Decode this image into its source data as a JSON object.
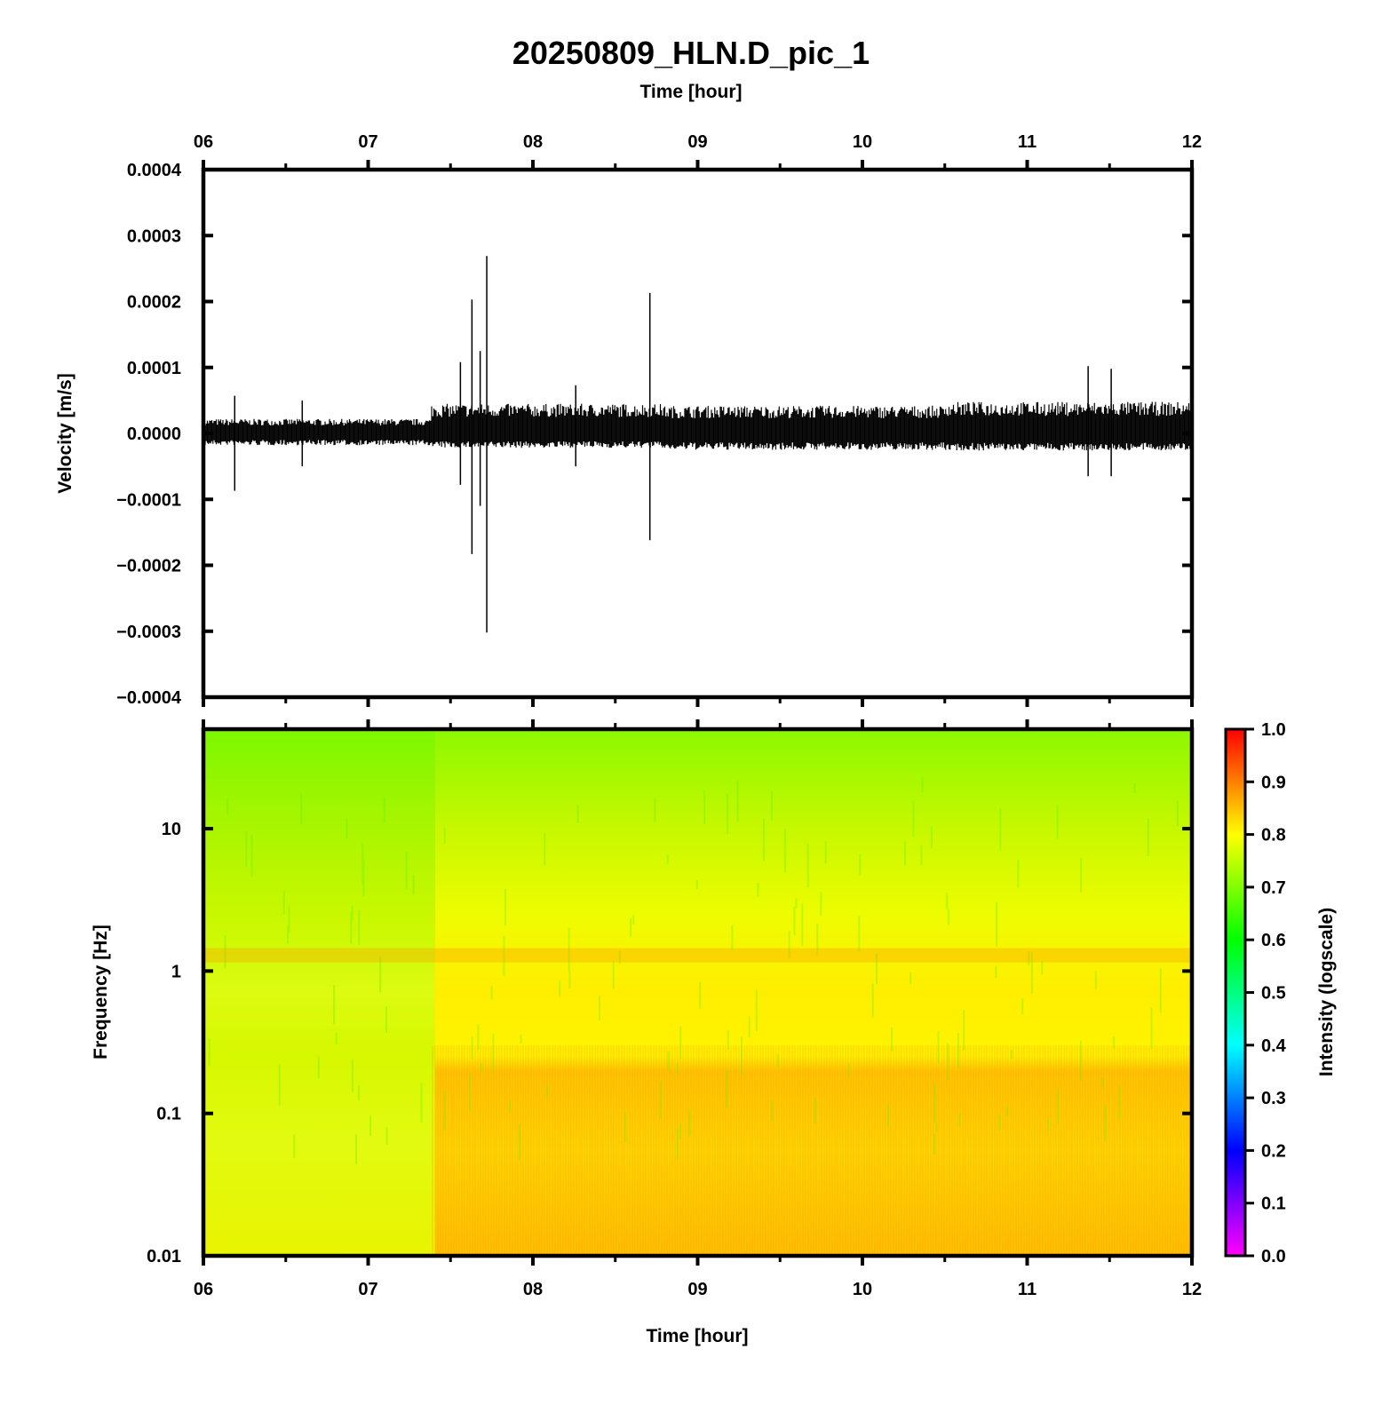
{
  "title": "20250809_HLN.D_pic_1",
  "top_axis_label": "Time [hour]",
  "bottom_axis_label": "Time [hour]",
  "chart_data": [
    {
      "type": "line",
      "panel": "seismogram",
      "ylabel": "Velocity [m/s]",
      "xlabel": "Time [hour]",
      "x_range_hours": [
        6,
        12
      ],
      "ylim": [
        -0.0004,
        0.0004
      ],
      "x_ticks": [
        "06",
        "07",
        "08",
        "09",
        "10",
        "11",
        "12"
      ],
      "y_ticks": [
        "0.0004",
        "0.0003",
        "0.0002",
        "0.0001",
        "0.0000",
        "−0.0001",
        "−0.0002",
        "−0.0003",
        "−0.0004"
      ],
      "noise_segments": [
        {
          "t_start": 6.0,
          "t_end": 7.38,
          "upper": 2.2e-05,
          "lower": -1.8e-05
        },
        {
          "t_start": 7.38,
          "t_end": 8.8,
          "upper": 4.5e-05,
          "lower": -2.2e-05
        },
        {
          "t_start": 8.8,
          "t_end": 10.5,
          "upper": 4.2e-05,
          "lower": -2.5e-05
        },
        {
          "t_start": 10.5,
          "t_end": 12.0,
          "upper": 4.8e-05,
          "lower": -2.6e-05
        }
      ],
      "spikes": [
        {
          "t": 6.19,
          "max": 5.7e-05,
          "min": -8.7e-05
        },
        {
          "t": 6.6,
          "max": 5e-05,
          "min": -5e-05
        },
        {
          "t": 7.56,
          "max": 0.000108,
          "min": -7.8e-05
        },
        {
          "t": 7.63,
          "max": 0.000203,
          "min": -0.000183
        },
        {
          "t": 7.68,
          "max": 0.000125,
          "min": -0.00011
        },
        {
          "t": 7.72,
          "max": 0.000269,
          "min": -0.000302
        },
        {
          "t": 8.26,
          "max": 7.3e-05,
          "min": -5e-05
        },
        {
          "t": 8.71,
          "max": 0.000213,
          "min": -0.000162
        },
        {
          "t": 11.37,
          "max": 0.000102,
          "min": -6.5e-05
        },
        {
          "t": 11.51,
          "max": 9.8e-05,
          "min": -6.5e-05
        }
      ]
    },
    {
      "type": "heatmap",
      "panel": "spectrogram",
      "ylabel": "Frequency [Hz]",
      "xlabel": "Time [hour]",
      "x_range_hours": [
        6,
        12
      ],
      "y_scale": "log",
      "ylim": [
        0.01,
        50
      ],
      "x_ticks": [
        "06",
        "07",
        "08",
        "09",
        "10",
        "11",
        "12"
      ],
      "y_ticks": [
        "10",
        "1",
        "0.1",
        "0.01"
      ],
      "colorbar": {
        "label": "Intensity (logscale)",
        "range": [
          0.0,
          1.0
        ],
        "ticks": [
          "1.0",
          "0.9",
          "0.8",
          "0.7",
          "0.6",
          "0.5",
          "0.4",
          "0.3",
          "0.2",
          "0.1",
          "0.0"
        ],
        "colors": [
          "#ff00ff",
          "#8000ff",
          "#0000ff",
          "#0080ff",
          "#00ffff",
          "#00ff80",
          "#00ff00",
          "#80ff00",
          "#ffff00",
          "#ff8000",
          "#ff0000"
        ]
      },
      "intensity_rows": [
        {
          "freq": 50,
          "before_7_38": 0.62,
          "after_7_38": 0.66
        },
        {
          "freq": 10,
          "before_7_38": 0.7,
          "after_7_38": 0.77
        },
        {
          "freq": 3,
          "before_7_38": 0.73,
          "after_7_38": 0.8
        },
        {
          "freq": 1.2,
          "before_7_38": 0.76,
          "after_7_38": 0.83
        },
        {
          "freq": 0.5,
          "before_7_38": 0.74,
          "after_7_38": 0.81
        },
        {
          "freq": 0.2,
          "before_7_38": 0.76,
          "after_7_38": 0.87
        },
        {
          "freq": 0.05,
          "before_7_38": 0.78,
          "after_7_38": 0.86
        },
        {
          "freq": 0.01,
          "before_7_38": 0.79,
          "after_7_38": 0.88
        }
      ]
    }
  ]
}
